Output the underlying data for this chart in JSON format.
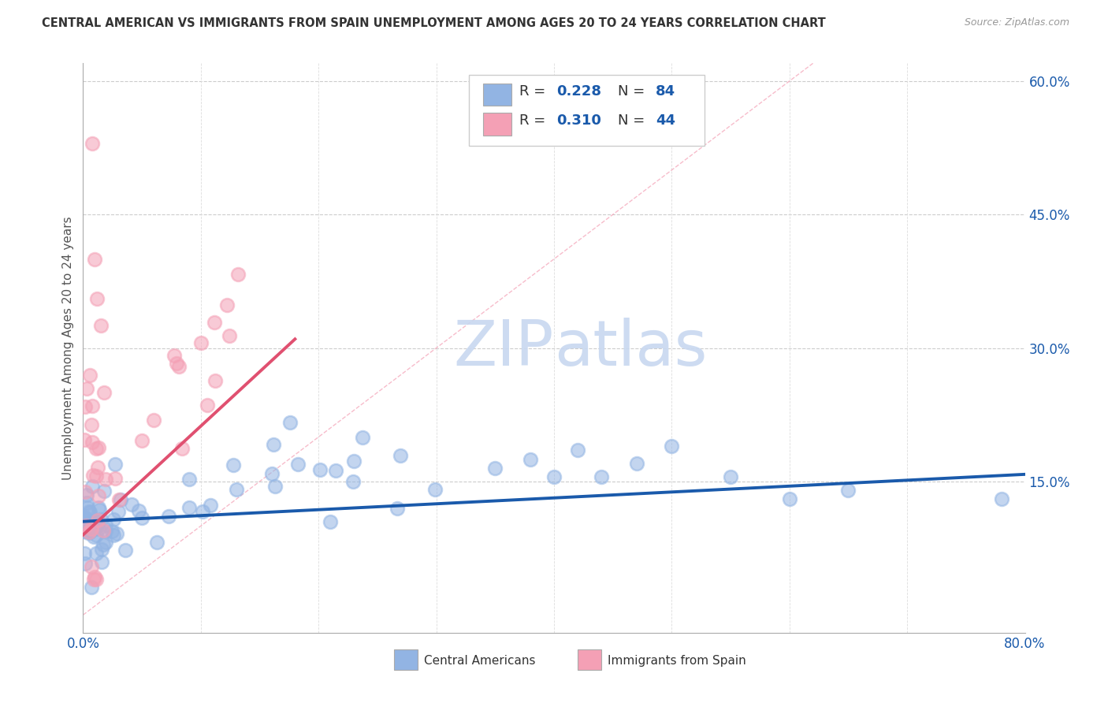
{
  "title": "CENTRAL AMERICAN VS IMMIGRANTS FROM SPAIN UNEMPLOYMENT AMONG AGES 20 TO 24 YEARS CORRELATION CHART",
  "source": "Source: ZipAtlas.com",
  "ylabel": "Unemployment Among Ages 20 to 24 years",
  "xlim": [
    0.0,
    0.8
  ],
  "ylim": [
    -0.02,
    0.62
  ],
  "xticks": [
    0.0,
    0.1,
    0.2,
    0.3,
    0.4,
    0.5,
    0.6,
    0.7,
    0.8
  ],
  "xticklabels": [
    "0.0%",
    "",
    "",
    "",
    "",
    "",
    "",
    "",
    "80.0%"
  ],
  "ytick_positions": [
    0.15,
    0.3,
    0.45,
    0.6
  ],
  "ytick_labels": [
    "15.0%",
    "30.0%",
    "45.0%",
    "60.0%"
  ],
  "blue_R": 0.228,
  "blue_N": 84,
  "pink_R": 0.31,
  "pink_N": 44,
  "blue_color": "#92b4e3",
  "pink_color": "#f4a0b5",
  "trendline_blue_color": "#1a5aab",
  "trendline_pink_color": "#e05070",
  "trendline_diag_color": "#cccccc",
  "watermark_color": "#c8d8f0",
  "legend_text_color": "#1a5aab",
  "legend_label_color": "#333333",
  "blue_trend_x": [
    0.0,
    0.8
  ],
  "blue_trend_y": [
    0.105,
    0.158
  ],
  "pink_trend_x": [
    0.0,
    0.18
  ],
  "pink_trend_y": [
    0.09,
    0.31
  ]
}
